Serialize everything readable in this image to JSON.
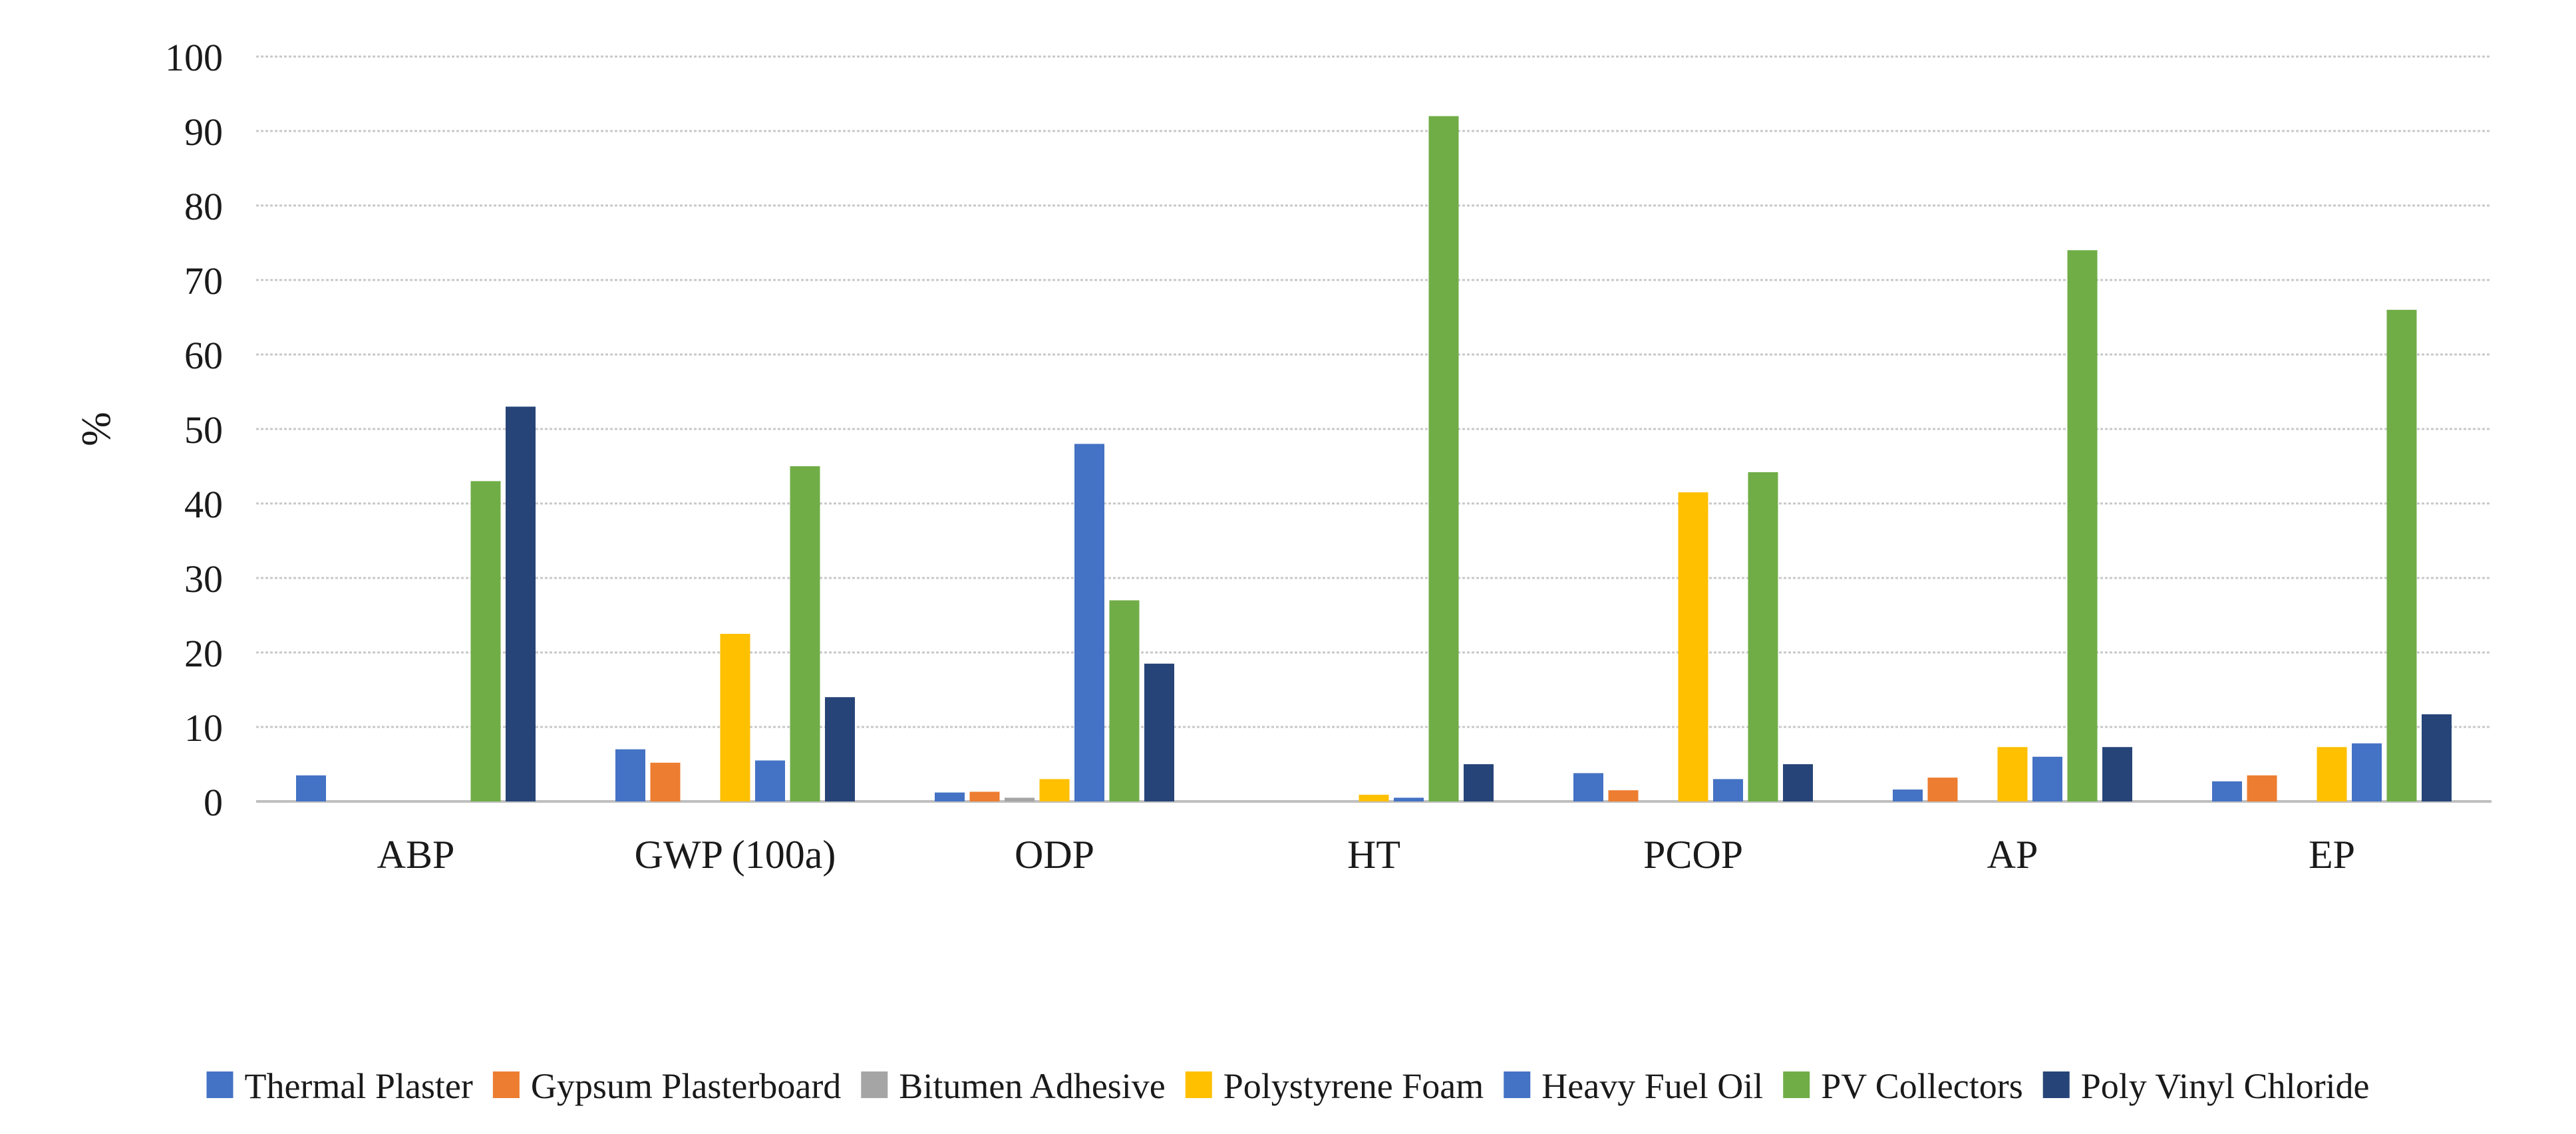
{
  "chart_data": {
    "type": "bar",
    "title": "",
    "xlabel": "",
    "ylabel": "%",
    "ylim": [
      0,
      100
    ],
    "yticks": [
      0,
      10,
      20,
      30,
      40,
      50,
      60,
      70,
      80,
      90,
      100
    ],
    "grid": true,
    "legend_position": "bottom",
    "categories": [
      "ABP",
      "GWP (100a)",
      "ODP",
      "HT",
      "PCOP",
      "AP",
      "EP"
    ],
    "series": [
      {
        "name": "Thermal Plaster",
        "color": "#4472C4",
        "values": [
          3.5,
          7.0,
          1.2,
          0,
          3.8,
          1.6,
          2.7
        ]
      },
      {
        "name": "Gypsum Plasterboard",
        "color": "#ED7D31",
        "values": [
          0,
          5.2,
          1.3,
          0,
          1.5,
          3.2,
          3.5
        ]
      },
      {
        "name": "Bitumen Adhesive",
        "color": "#A5A5A5",
        "values": [
          0,
          0,
          0.5,
          0,
          0,
          0,
          0
        ]
      },
      {
        "name": "Polystyrene Foam",
        "color": "#FFC000",
        "values": [
          0,
          22.5,
          3.0,
          0.9,
          41.5,
          7.3,
          7.3
        ]
      },
      {
        "name": "Heavy Fuel Oil",
        "color": "#4472C4",
        "values": [
          0,
          5.5,
          48.0,
          0.5,
          3.0,
          6.0,
          7.8
        ]
      },
      {
        "name": "PV Collectors",
        "color": "#70AD47",
        "values": [
          43.0,
          45.0,
          27.0,
          92.0,
          44.2,
          74.0,
          66.0
        ]
      },
      {
        "name": "Poly Vinyl Chloride",
        "color": "#264478",
        "values": [
          53.0,
          14.0,
          18.5,
          5.0,
          5.0,
          7.3,
          11.7
        ]
      }
    ]
  }
}
